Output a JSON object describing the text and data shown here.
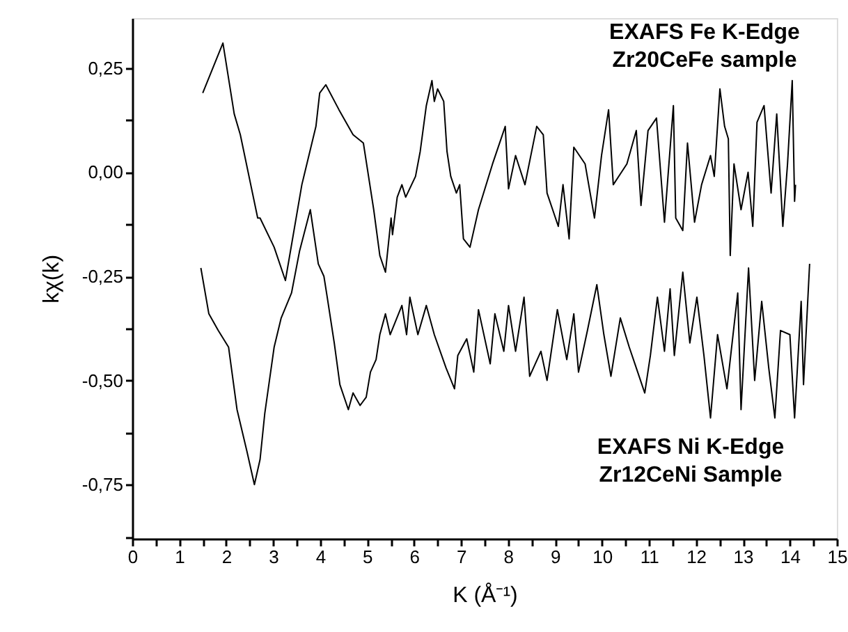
{
  "chart_data": {
    "type": "line",
    "xlabel": "K (Å⁻¹)",
    "ylabel": "kχ(k)",
    "xlim": [
      0,
      15
    ],
    "ylim": [
      -0.88,
      0.37
    ],
    "xticks": [
      0,
      {
        "value": 0.5,
        "label": null
      },
      1,
      {
        "value": 1.5,
        "label": null
      },
      2,
      {
        "value": 2.5,
        "label": null
      },
      3,
      {
        "value": 3.5,
        "label": null
      },
      4,
      {
        "value": 4.5,
        "label": null
      },
      5,
      {
        "value": 5.5,
        "label": null
      },
      6,
      {
        "value": 6.5,
        "label": null
      },
      7,
      {
        "value": 7.5,
        "label": null
      },
      8,
      {
        "value": 8.5,
        "label": null
      },
      9,
      {
        "value": 9.5,
        "label": null
      },
      10,
      {
        "value": 10.5,
        "label": null
      },
      11,
      {
        "value": 11.5,
        "label": null
      },
      12,
      {
        "value": 12.5,
        "label": null
      },
      13,
      {
        "value": 13.5,
        "label": null
      },
      14,
      {
        "value": 14.5,
        "label": null
      },
      15
    ],
    "yticks": [
      {
        "value": -0.875,
        "label": null
      },
      {
        "value": -0.75,
        "label": "-0,75"
      },
      {
        "value": -0.625,
        "label": null
      },
      {
        "value": -0.5,
        "label": "-0,50"
      },
      {
        "value": -0.375,
        "label": null
      },
      {
        "value": -0.25,
        "label": "-0,25"
      },
      {
        "value": -0.125,
        "label": null
      },
      {
        "value": 0,
        "label": "0,00"
      },
      {
        "value": 0.125,
        "label": null
      },
      {
        "value": 0.25,
        "label": "0,25"
      }
    ],
    "grid": false,
    "marker": "none",
    "line_style": "solid",
    "series": [
      {
        "name": "EXAFS Fe K-Edge\nZr20CeFe sample",
        "color": "#000000",
        "x": [
          1.5,
          1.93,
          2.17,
          2.3,
          2.67,
          2.72,
          3.02,
          3.26,
          3.61,
          3.91,
          3.99,
          4.12,
          4.4,
          4.7,
          4.92,
          5.14,
          5.27,
          5.39,
          5.51,
          5.54,
          5.64,
          5.74,
          5.82,
          6.03,
          6.13,
          6.26,
          6.38,
          6.43,
          6.5,
          6.63,
          6.7,
          6.78,
          6.9,
          6.97,
          7.05,
          7.19,
          7.37,
          7.67,
          7.94,
          8.01,
          8.16,
          8.36,
          8.61,
          8.75,
          8.83,
          9.07,
          9.17,
          9.3,
          9.4,
          9.64,
          9.84,
          9.99,
          10.14,
          10.24,
          10.53,
          10.73,
          10.83,
          10.98,
          11.16,
          11.33,
          11.52,
          11.57,
          11.72,
          11.82,
          11.97,
          12.12,
          12.31,
          12.39,
          12.51,
          12.61,
          12.69,
          12.73,
          12.81,
          12.96,
          13.11,
          13.21,
          13.3,
          13.45,
          13.6,
          13.72,
          13.85,
          13.95,
          14.05,
          14.1,
          14.12
        ],
        "values": [
          0.19,
          0.31,
          0.14,
          0.09,
          -0.11,
          -0.11,
          -0.18,
          -0.26,
          -0.03,
          0.11,
          0.19,
          0.21,
          0.15,
          0.09,
          0.07,
          -0.09,
          -0.2,
          -0.24,
          -0.11,
          -0.15,
          -0.06,
          -0.03,
          -0.06,
          -0.01,
          0.05,
          0.16,
          0.22,
          0.17,
          0.2,
          0.17,
          0.05,
          -0.01,
          -0.05,
          -0.03,
          -0.16,
          -0.18,
          -0.09,
          0.02,
          0.11,
          -0.04,
          0.04,
          -0.03,
          0.11,
          0.09,
          -0.05,
          -0.13,
          -0.03,
          -0.16,
          0.06,
          0.02,
          -0.11,
          0.04,
          0.15,
          -0.03,
          0.02,
          0.1,
          -0.08,
          0.1,
          0.13,
          -0.12,
          0.16,
          -0.11,
          -0.14,
          0.07,
          -0.12,
          -0.03,
          0.04,
          -0.01,
          0.2,
          0.11,
          0.08,
          -0.2,
          0.02,
          -0.09,
          0.0,
          -0.13,
          0.12,
          0.16,
          -0.05,
          0.14,
          -0.13,
          0.02,
          0.22,
          -0.07,
          -0.03
        ]
      },
      {
        "name": "EXAFS Ni K-Edge\nZr12CeNi Sample",
        "color": "#000000",
        "x": [
          1.46,
          1.63,
          1.83,
          2.05,
          2.23,
          2.44,
          2.6,
          2.72,
          2.82,
          3.02,
          3.17,
          3.39,
          3.56,
          3.79,
          3.96,
          4.08,
          4.15,
          4.3,
          4.42,
          4.6,
          4.7,
          4.85,
          4.98,
          5.07,
          5.19,
          5.27,
          5.39,
          5.49,
          5.74,
          5.84,
          5.91,
          6.08,
          6.26,
          6.43,
          6.68,
          6.86,
          6.93,
          7.12,
          7.27,
          7.37,
          7.62,
          7.72,
          7.91,
          8.01,
          8.16,
          8.34,
          8.46,
          8.7,
          8.83,
          9.05,
          9.25,
          9.4,
          9.5,
          9.69,
          9.89,
          10.04,
          10.19,
          10.39,
          10.58,
          10.73,
          10.91,
          11.03,
          11.18,
          11.33,
          11.45,
          11.54,
          11.72,
          11.87,
          12.02,
          12.17,
          12.31,
          12.46,
          12.66,
          12.89,
          12.96,
          13.12,
          13.25,
          13.4,
          13.55,
          13.68,
          13.8,
          14.0,
          14.1,
          14.24,
          14.29,
          14.42
        ],
        "values": [
          -0.23,
          -0.34,
          -0.38,
          -0.42,
          -0.57,
          -0.67,
          -0.75,
          -0.69,
          -0.58,
          -0.42,
          -0.35,
          -0.29,
          -0.19,
          -0.09,
          -0.22,
          -0.25,
          -0.3,
          -0.41,
          -0.51,
          -0.57,
          -0.53,
          -0.56,
          -0.54,
          -0.48,
          -0.45,
          -0.39,
          -0.34,
          -0.39,
          -0.32,
          -0.39,
          -0.3,
          -0.39,
          -0.32,
          -0.39,
          -0.47,
          -0.52,
          -0.44,
          -0.4,
          -0.48,
          -0.33,
          -0.46,
          -0.34,
          -0.43,
          -0.32,
          -0.43,
          -0.3,
          -0.49,
          -0.43,
          -0.5,
          -0.33,
          -0.45,
          -0.34,
          -0.48,
          -0.38,
          -0.27,
          -0.39,
          -0.49,
          -0.35,
          -0.42,
          -0.47,
          -0.53,
          -0.44,
          -0.3,
          -0.43,
          -0.28,
          -0.44,
          -0.24,
          -0.41,
          -0.3,
          -0.44,
          -0.59,
          -0.39,
          -0.52,
          -0.29,
          -0.57,
          -0.23,
          -0.5,
          -0.31,
          -0.47,
          -0.59,
          -0.38,
          -0.39,
          -0.59,
          -0.31,
          -0.51,
          -0.22
        ]
      }
    ]
  }
}
